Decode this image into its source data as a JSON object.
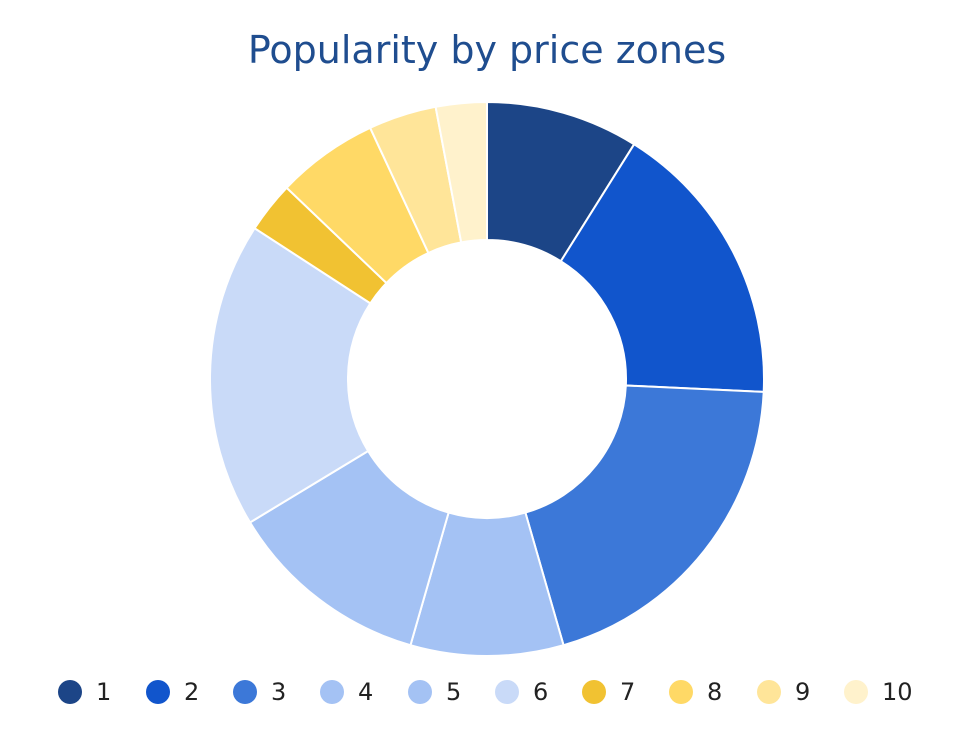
{
  "chart_data": {
    "type": "pie",
    "variant": "donut",
    "title": "Popularity by price zones",
    "categories": [
      "1",
      "2",
      "3",
      "4",
      "5",
      "6",
      "7",
      "8",
      "9",
      "10"
    ],
    "values": [
      9,
      17,
      20,
      9,
      12,
      18,
      3,
      6,
      4,
      3
    ],
    "colors": [
      "#1c4587",
      "#1155cc",
      "#3c78d8",
      "#a4c2f4",
      "#a4c2f4",
      "#c9daf8",
      "#f1c232",
      "#ffd966",
      "#ffe599",
      "#fff2cc"
    ],
    "legend": {
      "position": "bottom",
      "entries": [
        "1",
        "2",
        "3",
        "4",
        "5",
        "6",
        "7",
        "8",
        "9",
        "10"
      ]
    }
  }
}
